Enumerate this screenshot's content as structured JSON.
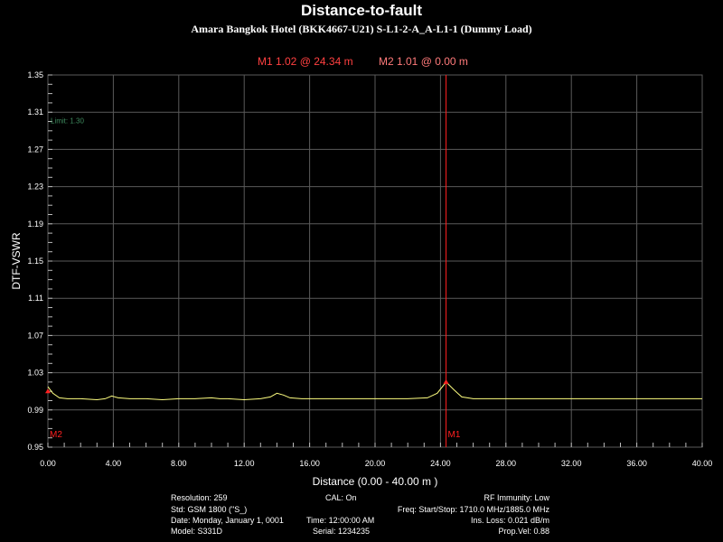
{
  "colors": {
    "background": "#000000",
    "grid": "#5a5a5a",
    "trace": "#ffff80",
    "marker": "#ff2020",
    "limit": "#3e8a5e",
    "text": "#ffffff"
  },
  "chart_data": {
    "type": "line",
    "title": "Distance-to-fault",
    "subtitle": "Amara Bangkok Hotel (BKK4667-U21) S-L1-2-A_A-L1-1 (Dummy Load)",
    "xlabel": "Distance (0.00 - 40.00 m )",
    "ylabel": "DTF-VSWR",
    "xlim": [
      0,
      40
    ],
    "ylim": [
      0.95,
      1.35
    ],
    "x_ticks": [
      "0.00",
      "4.00",
      "8.00",
      "12.00",
      "16.00",
      "20.00",
      "24.00",
      "28.00",
      "32.00",
      "36.00",
      "40.00"
    ],
    "x_tick_values": [
      0,
      4,
      8,
      12,
      16,
      20,
      24,
      28,
      32,
      36,
      40
    ],
    "y_ticks": [
      "0.95",
      "0.99",
      "1.03",
      "1.07",
      "1.11",
      "1.15",
      "1.19",
      "1.23",
      "1.27",
      "1.31",
      "1.35"
    ],
    "y_tick_values": [
      0.95,
      0.99,
      1.03,
      1.07,
      1.11,
      1.15,
      1.19,
      1.23,
      1.27,
      1.31,
      1.35
    ],
    "grid": true,
    "limit": {
      "value": 1.3,
      "label": "Limit: 1.30"
    },
    "series": [
      {
        "color": "#ffff80",
        "x": [
          0,
          0.3,
          0.7,
          1.2,
          2,
          3,
          3.5,
          3.9,
          4.3,
          5,
          6,
          7,
          8,
          9,
          10,
          10.5,
          11,
          12,
          13,
          13.6,
          14,
          14.4,
          14.8,
          15.5,
          16,
          18,
          20,
          22,
          23.2,
          23.8,
          24.34,
          24.8,
          25.3,
          26,
          28,
          30,
          30.1,
          34,
          38,
          40
        ],
        "y": [
          1.015,
          1.008,
          1.003,
          1.002,
          1.002,
          1.001,
          1.002,
          1.005,
          1.003,
          1.002,
          1.002,
          1.001,
          1.002,
          1.002,
          1.003,
          1.002,
          1.002,
          1.001,
          1.002,
          1.004,
          1.008,
          1.006,
          1.003,
          1.002,
          1.002,
          1.002,
          1.002,
          1.002,
          1.003,
          1.008,
          1.02,
          1.012,
          1.004,
          1.002,
          1.002,
          1.002,
          1.002,
          1.002,
          1.002,
          1.002
        ]
      }
    ],
    "markers": [
      {
        "name": "M1",
        "x": 24.34,
        "y": 1.02,
        "readout": "M1  1.02 @ 24.34 m"
      },
      {
        "name": "M2",
        "x": 0.0,
        "y": 1.01,
        "readout": "M2  1.01 @ 0.00 m"
      }
    ]
  },
  "info": {
    "resolution": "Resolution: 259",
    "std": "Std: GSM 1800 (\"S_)",
    "date": "Date: Monday, January 1, 0001",
    "model": "Model: S331D",
    "cal": "CAL: On",
    "time": "Time: 12:00:00 AM",
    "serial": "Serial: 1234235",
    "freq": "Freq: Start/Stop: 1710.0 MHz/1885.0 MHz",
    "rf": "RF Immunity: Low",
    "loss": "Ins. Loss: 0.021 dB/m",
    "prop": "Prop.Vel: 0.88"
  }
}
